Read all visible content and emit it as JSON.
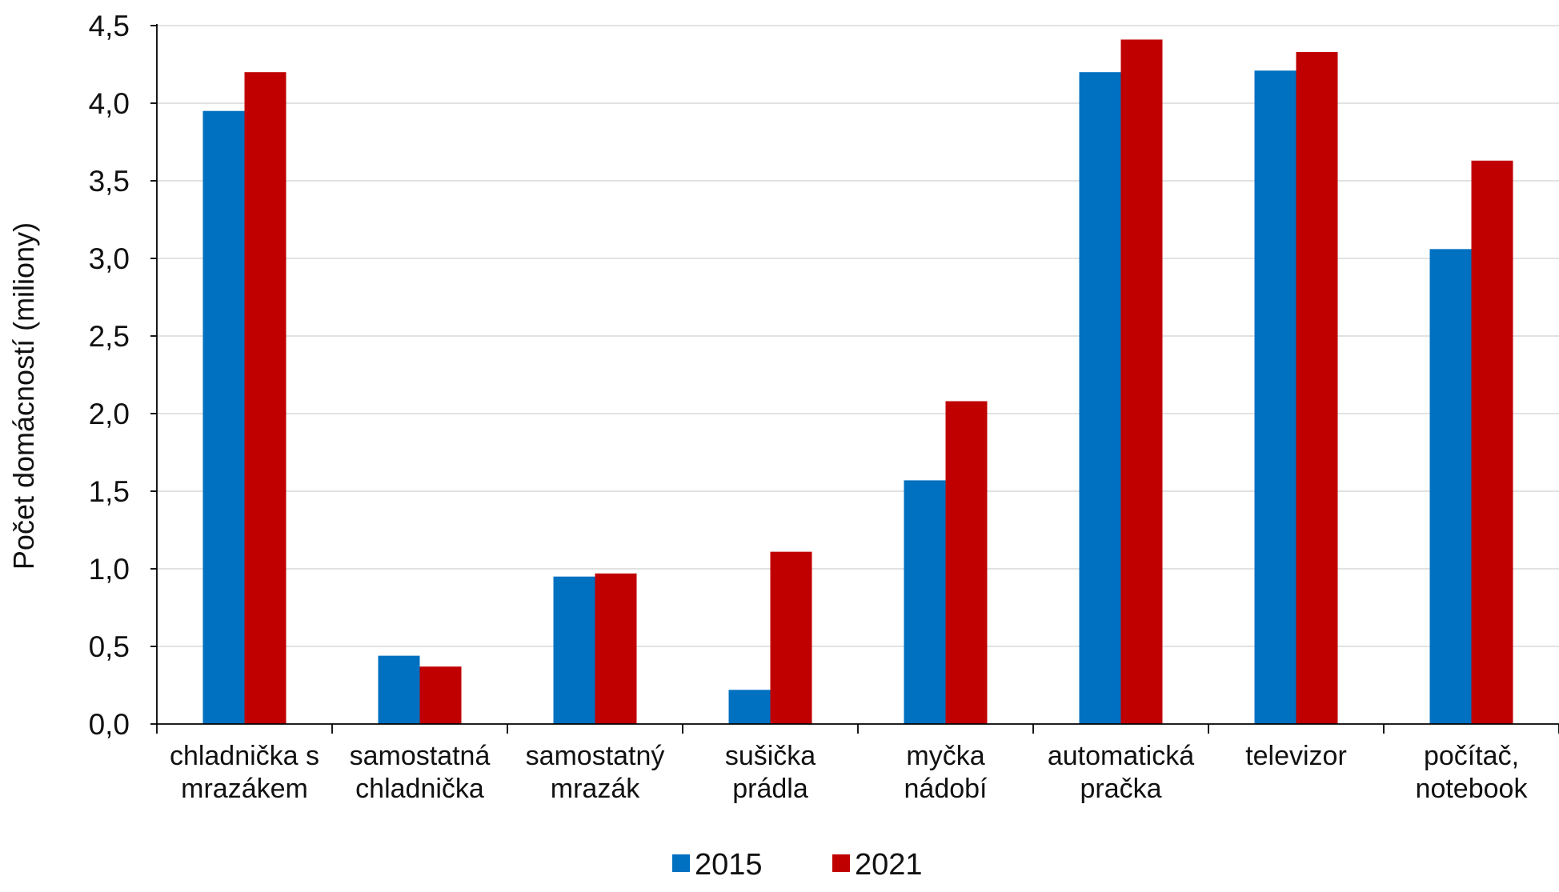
{
  "chart_data": {
    "type": "bar",
    "title": "",
    "xlabel": "",
    "ylabel": "Počet domácností (miliony)",
    "ylim": [
      0,
      4.5
    ],
    "y_ticks": [
      "0,0",
      "0,5",
      "1,0",
      "1,5",
      "2,0",
      "2,5",
      "3,0",
      "3,5",
      "4,0",
      "4,5"
    ],
    "grid": true,
    "legend_position": "bottom",
    "categories": [
      [
        "chladnička s",
        "mrazákem"
      ],
      [
        "samostatná",
        "chladnička"
      ],
      [
        "samostatný",
        "mrazák"
      ],
      [
        "sušička",
        "prádla"
      ],
      [
        "myčka",
        "nádobí"
      ],
      [
        "automatická",
        "pračka"
      ],
      [
        "televizor"
      ],
      [
        "počítač,",
        "notebook"
      ]
    ],
    "series": [
      {
        "name": "2015",
        "color": "#0070c0",
        "values": [
          3.95,
          0.44,
          0.95,
          0.22,
          1.57,
          4.2,
          4.21,
          3.06
        ]
      },
      {
        "name": "2021",
        "color": "#c00000",
        "values": [
          4.2,
          0.37,
          0.97,
          1.11,
          2.08,
          4.41,
          4.33,
          3.63
        ]
      }
    ]
  }
}
